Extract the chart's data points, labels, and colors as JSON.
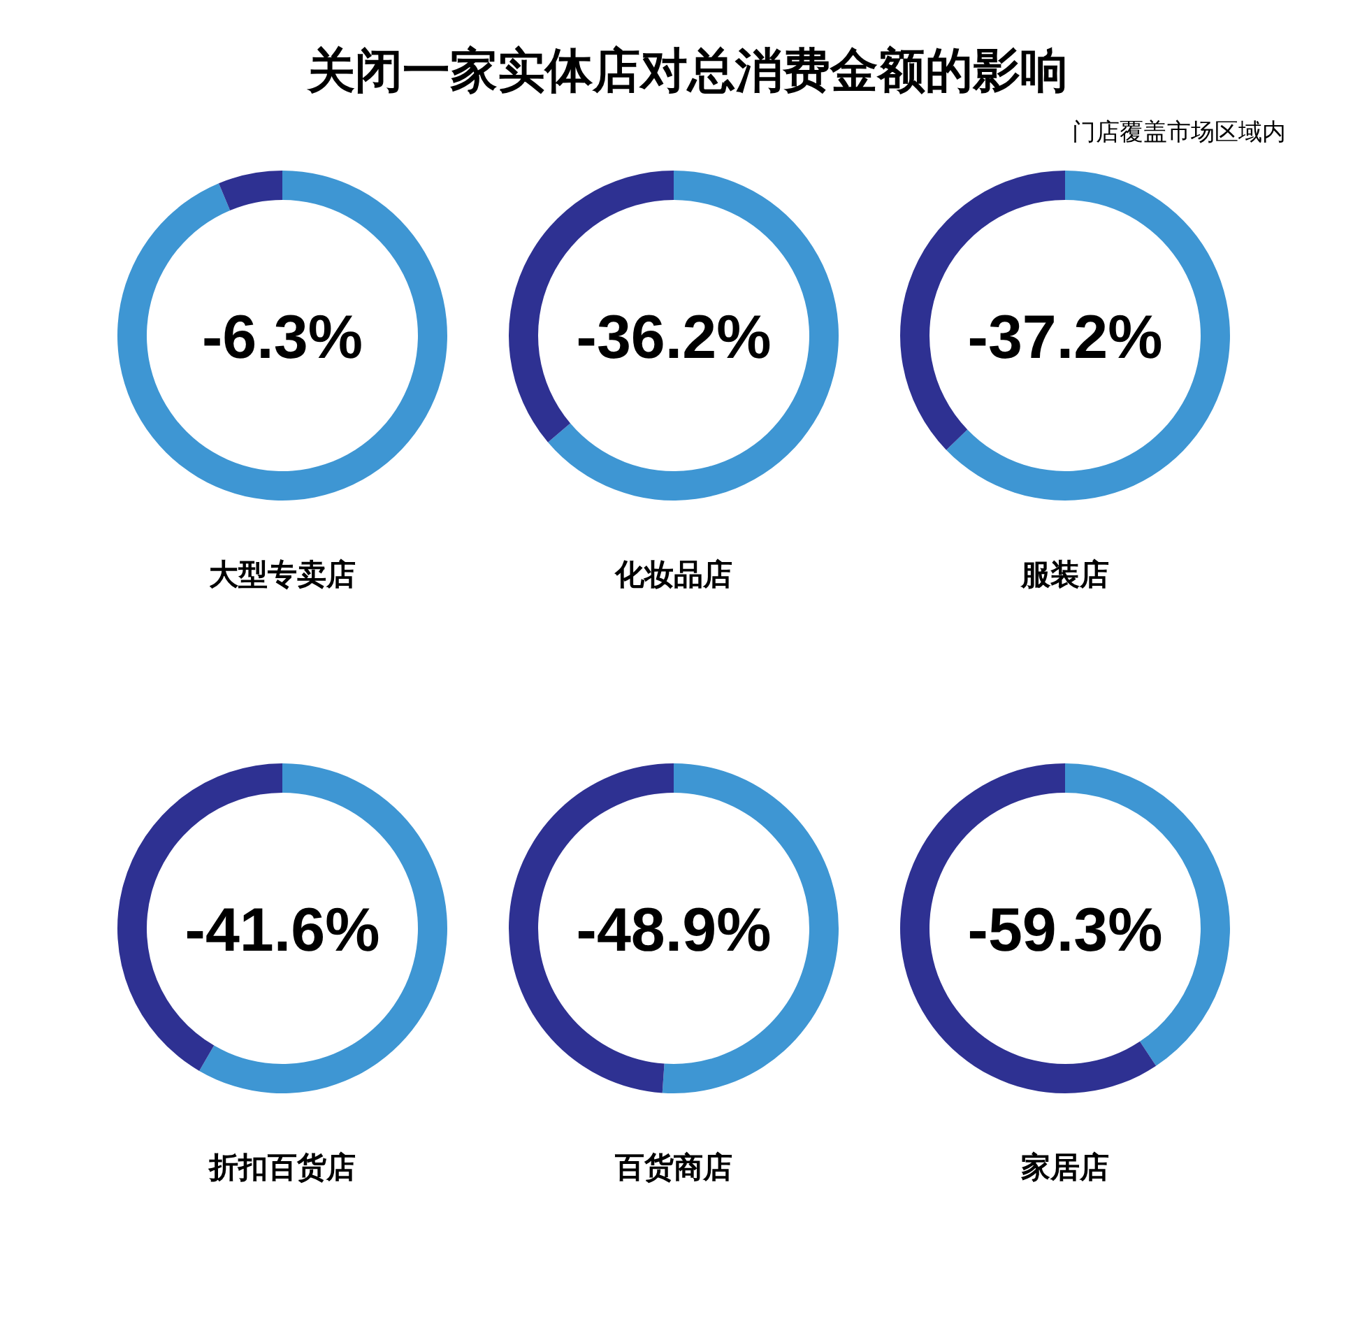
{
  "chart_data": [
    {
      "type": "donut",
      "xlabel": "大型专卖店",
      "categories": [
        null,
        null
      ],
      "values": [
        93.7,
        6.3
      ],
      "colors": [
        "#3e96d3",
        "#2e3192"
      ],
      "annotations": [
        "-6.3%"
      ]
    },
    {
      "type": "donut",
      "title": "关闭一家实体店对总消费金额的影响",
      "xlabel": "化妆品店",
      "categories": [
        null,
        null
      ],
      "values": [
        63.8,
        36.2
      ],
      "colors": [
        "#3e96d3",
        "#2e3192"
      ],
      "annotations": [
        "-36.2%"
      ]
    },
    {
      "type": "donut",
      "subtitle": "门店覆盖市场区域内",
      "xlabel": "服装店",
      "categories": [
        null,
        null
      ],
      "values": [
        62.8,
        37.2
      ],
      "colors": [
        "#3e96d3",
        "#2e3192"
      ],
      "annotations": [
        "-37.2%"
      ]
    },
    {
      "type": "donut",
      "xlabel": "折扣百货店",
      "categories": [
        null,
        null
      ],
      "values": [
        58.4,
        41.6
      ],
      "colors": [
        "#3e96d3",
        "#2e3192"
      ],
      "annotations": [
        "-41.6%"
      ]
    },
    {
      "type": "donut",
      "xlabel": "百货商店",
      "categories": [
        null,
        null
      ],
      "values": [
        51.1,
        48.9
      ],
      "colors": [
        "#3e96d3",
        "#2e3192"
      ],
      "annotations": [
        "-48.9%"
      ]
    },
    {
      "type": "donut",
      "xlabel": "家居店",
      "categories": [
        null,
        null
      ],
      "values": [
        40.7,
        59.3
      ],
      "colors": [
        "#3e96d3",
        "#2e3192"
      ],
      "annotations": [
        "-59.3%"
      ]
    }
  ]
}
